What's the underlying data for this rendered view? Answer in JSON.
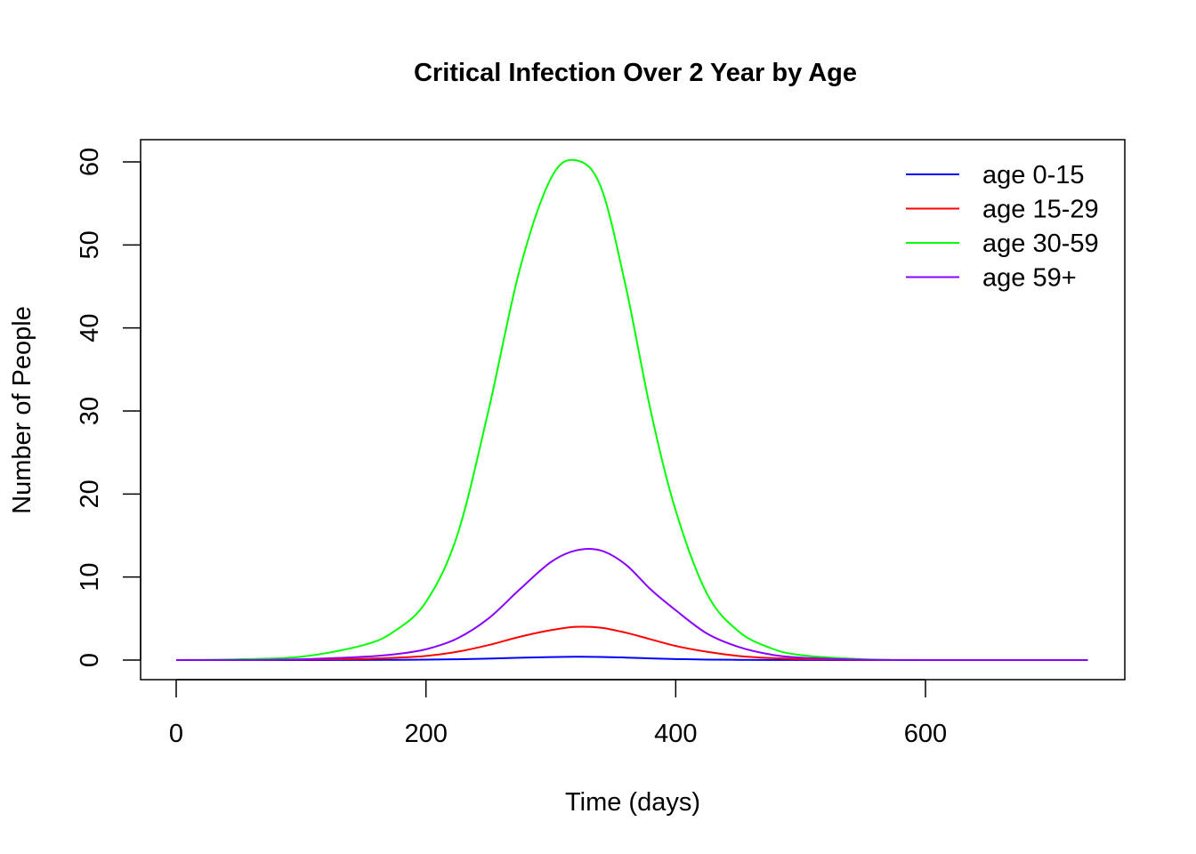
{
  "chart_data": {
    "type": "line",
    "title": "Critical Infection Over 2 Year by Age",
    "xlabel": "Time (days)",
    "ylabel": "Number of People",
    "xlim": [
      0,
      730
    ],
    "ylim": [
      0,
      62
    ],
    "x_ticks": [
      0,
      200,
      400,
      600
    ],
    "y_ticks": [
      0,
      10,
      20,
      30,
      40,
      50,
      60
    ],
    "grid": false,
    "legend_position": "top-right",
    "x": [
      0,
      50,
      100,
      150,
      175,
      200,
      225,
      250,
      275,
      300,
      320,
      340,
      360,
      380,
      400,
      425,
      450,
      475,
      500,
      550,
      600,
      650,
      730
    ],
    "series": [
      {
        "name": "age 0-15",
        "color": "#0000ff",
        "values": [
          0,
          0,
          0,
          0.02,
          0.03,
          0.05,
          0.1,
          0.18,
          0.28,
          0.36,
          0.4,
          0.38,
          0.3,
          0.2,
          0.12,
          0.06,
          0.03,
          0.01,
          0.01,
          0,
          0,
          0,
          0
        ]
      },
      {
        "name": "age 15-29",
        "color": "#ff0000",
        "values": [
          0,
          0,
          0.05,
          0.15,
          0.28,
          0.5,
          1.0,
          1.8,
          2.8,
          3.6,
          4.0,
          3.9,
          3.3,
          2.5,
          1.7,
          1.0,
          0.5,
          0.25,
          0.12,
          0.02,
          0,
          0,
          0
        ]
      },
      {
        "name": "age 30-59",
        "color": "#00ff00",
        "values": [
          0,
          0.1,
          0.4,
          1.8,
          3.5,
          7.0,
          15.0,
          30.0,
          47.0,
          58.0,
          60.2,
          57.0,
          45.0,
          30.0,
          18.0,
          8.0,
          3.5,
          1.5,
          0.6,
          0.1,
          0,
          0,
          0
        ]
      },
      {
        "name": "age 59+",
        "color": "#8800ff",
        "values": [
          0,
          0,
          0.1,
          0.4,
          0.7,
          1.3,
          2.6,
          5.0,
          8.5,
          11.8,
          13.2,
          13.2,
          11.5,
          8.5,
          6.0,
          3.2,
          1.6,
          0.7,
          0.3,
          0.05,
          0,
          0,
          0
        ]
      }
    ]
  }
}
